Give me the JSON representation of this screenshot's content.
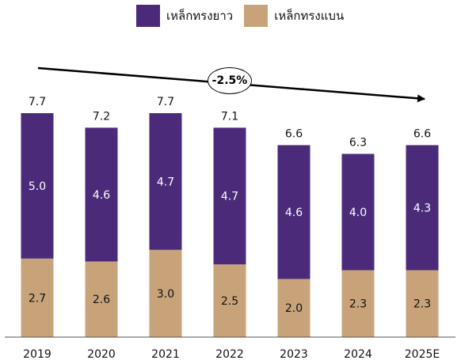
{
  "legend": {
    "series_a": "เหล็กทรงยาว",
    "series_b": "เหล็กทรงแบน"
  },
  "colors": {
    "long": "#4c2a7a",
    "flat": "#c8a37a"
  },
  "cagr_label": "-2.5%",
  "chart_data": {
    "type": "bar",
    "stacked": true,
    "categories": [
      "2019",
      "2020",
      "2021",
      "2022",
      "2023",
      "2024",
      "2025E"
    ],
    "series": [
      {
        "name": "เหล็กทรงแบน",
        "values": [
          2.7,
          2.6,
          3.0,
          2.5,
          2.0,
          2.3,
          2.3
        ],
        "color": "#c8a37a"
      },
      {
        "name": "เหล็กทรงยาว",
        "values": [
          5.0,
          4.6,
          4.7,
          4.7,
          4.6,
          4.0,
          4.3
        ],
        "color": "#4c2a7a"
      }
    ],
    "totals": [
      "7.7",
      "7.2",
      "7.7",
      "7.1",
      "6.6",
      "6.3",
      "6.6"
    ],
    "flat_labels": [
      "2.7",
      "2.6",
      "3.0",
      "2.5",
      "2.0",
      "2.3",
      "2.3"
    ],
    "long_labels": [
      "5.0",
      "4.6",
      "4.7",
      "4.7",
      "4.6",
      "4.0",
      "4.3"
    ],
    "ylim": [
      0,
      7.7
    ],
    "legend_position": "top",
    "grid": false
  }
}
